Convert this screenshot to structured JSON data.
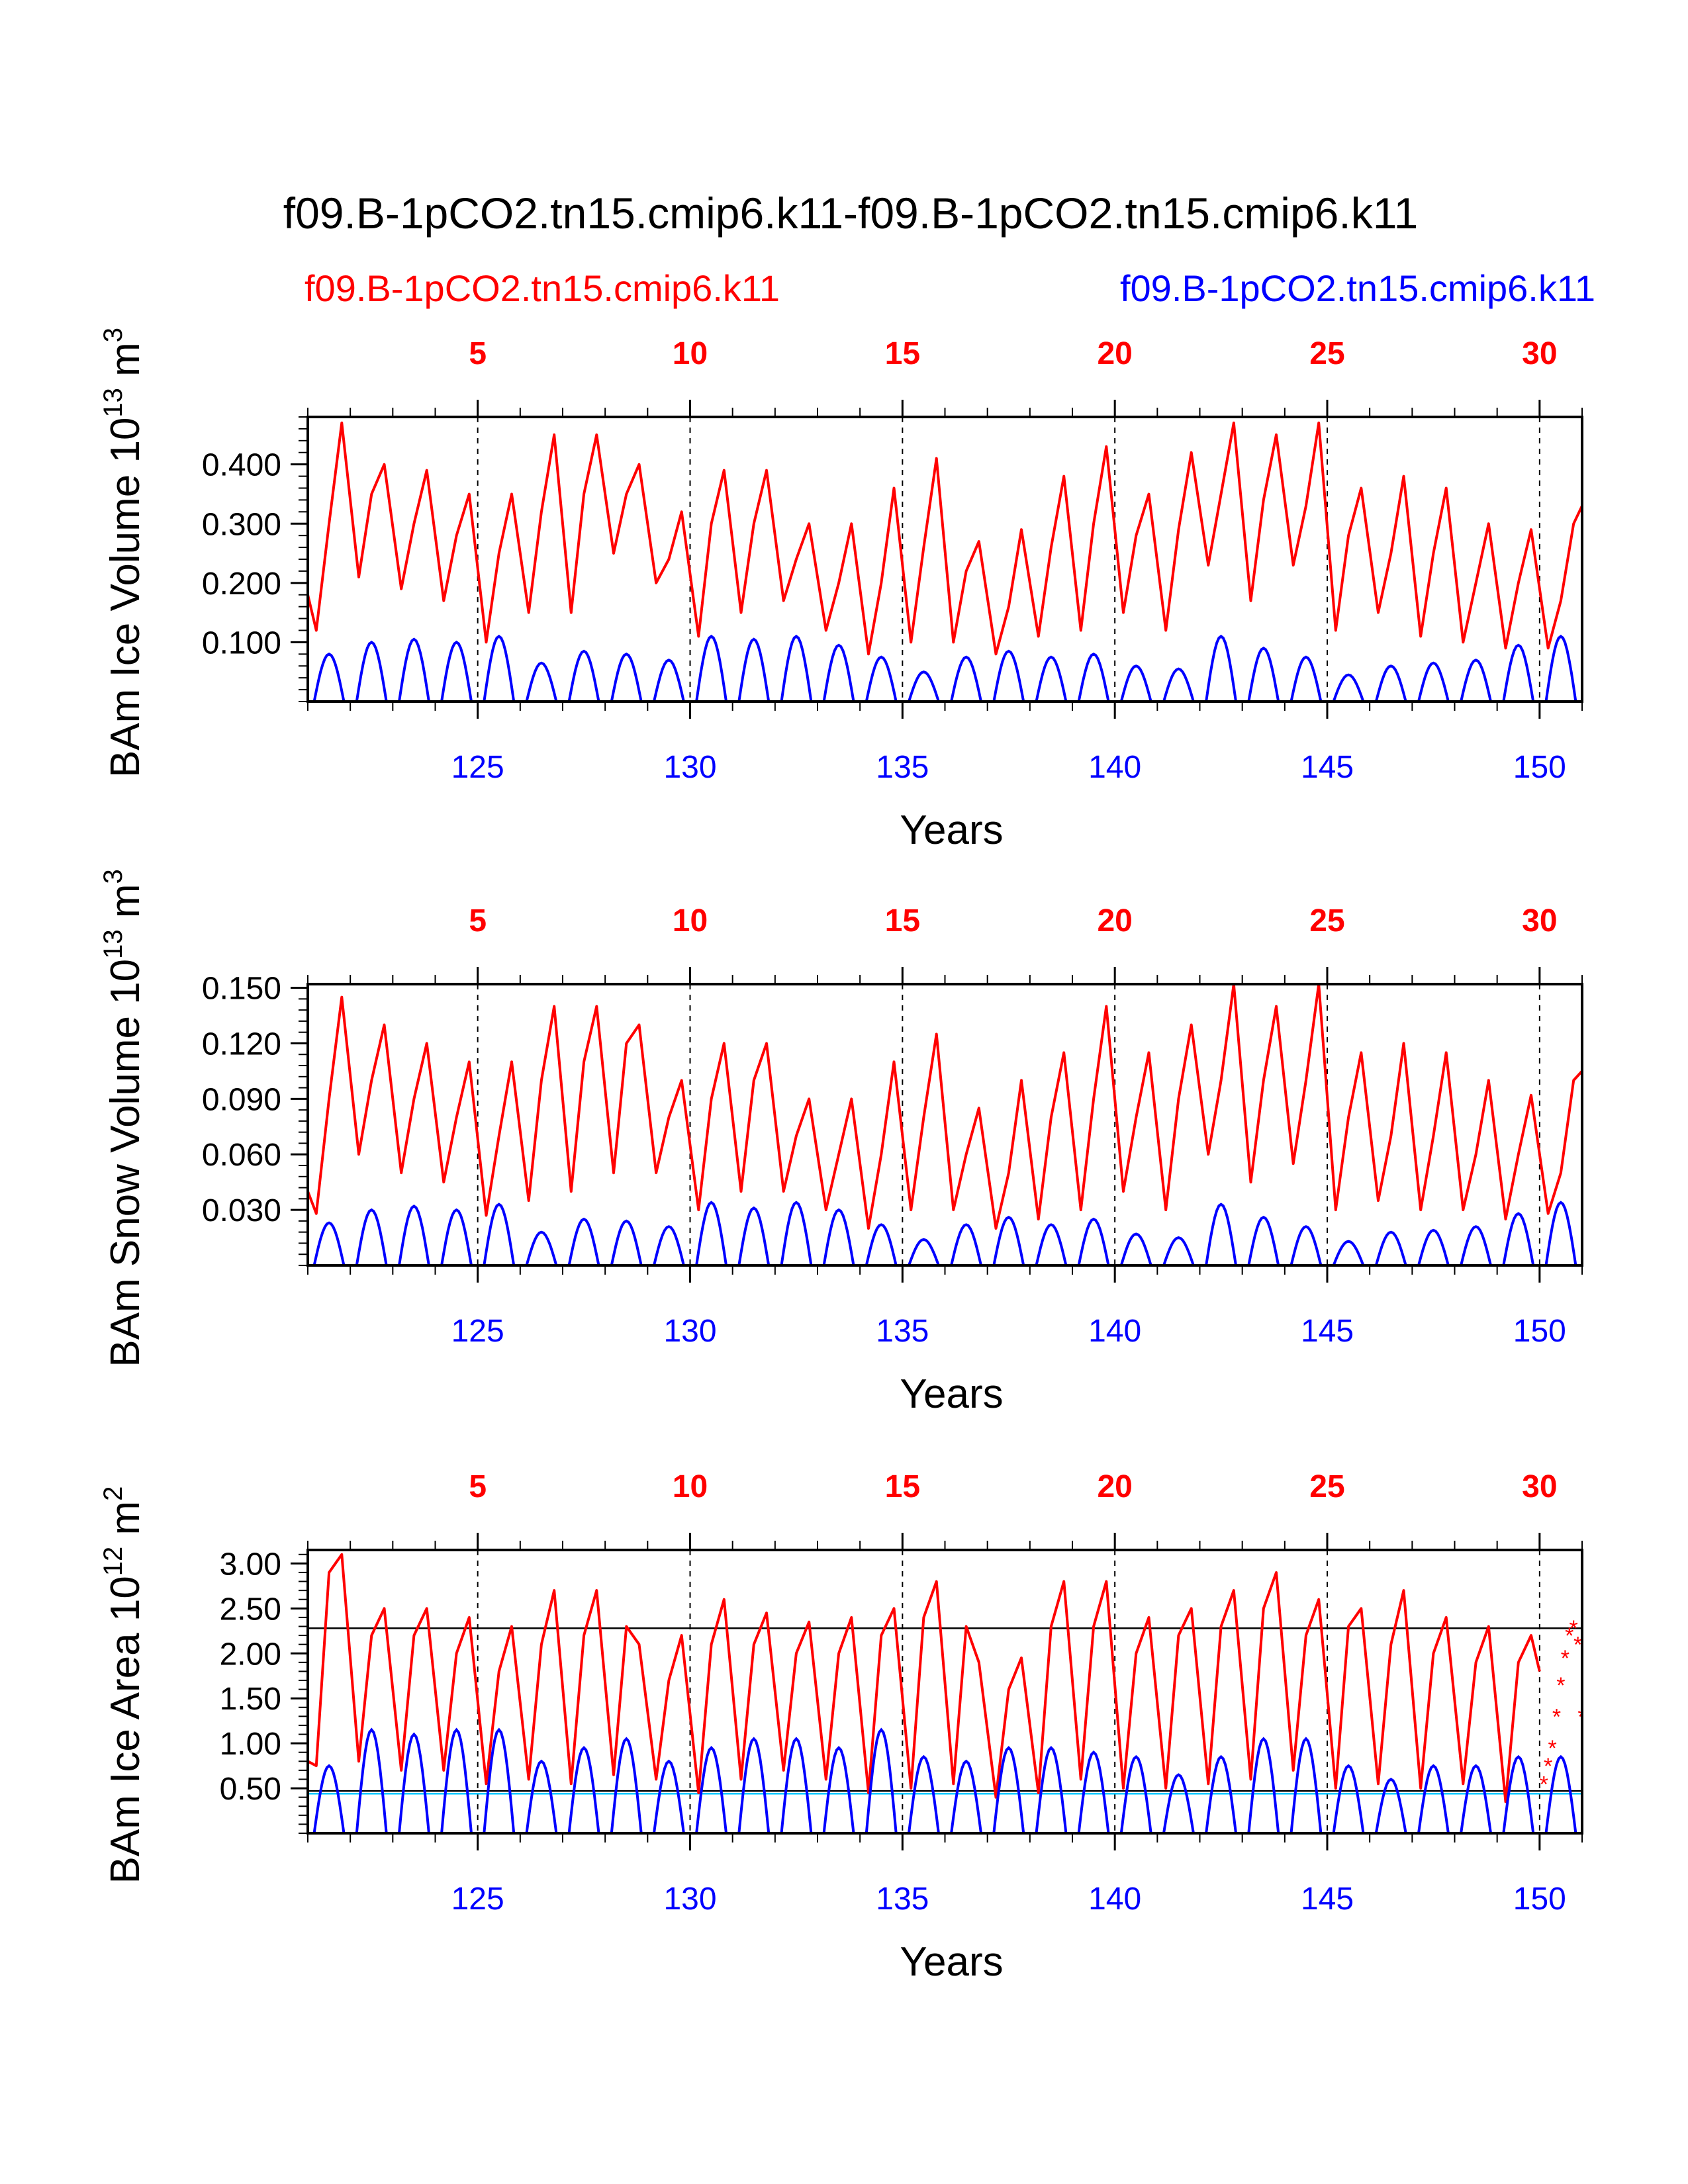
{
  "title": "f09.B-1pCO2.tn15.cmip6.k11-f09.B-1pCO2.tn15.cmip6.k11",
  "legend": {
    "left_label": "f09.B-1pCO2.tn15.cmip6.k11",
    "right_label": "f09.B-1pCO2.tn15.cmip6.k11",
    "left_color": "#ff0000",
    "right_color": "#0000ff"
  },
  "colors": {
    "red": "#ff0000",
    "blue": "#0000ff",
    "reference_cyan": "#00c8ff",
    "axis": "#000000"
  },
  "chart_data": [
    {
      "type": "line",
      "id": "ice-volume",
      "ylabel": "BAm Ice Volume",
      "yunit_base": "10",
      "yunit_exp": "13",
      "yunit_tail": "m",
      "yunit_tail_exp": "3",
      "xlabel": "Years",
      "xlim": [
        121,
        151
      ],
      "ylim": [
        0,
        0.48
      ],
      "yticks": [
        0.1,
        0.2,
        0.3,
        0.4
      ],
      "ytick_labels": [
        "0.100",
        "0.200",
        "0.300",
        "0.400"
      ],
      "ytick_minor_step": 0.02,
      "bottom_xticks": [
        125,
        130,
        135,
        140,
        145,
        150
      ],
      "bottom_xtick_labels": [
        "125",
        "130",
        "135",
        "140",
        "145",
        "150"
      ],
      "top_xticks": [
        5,
        10,
        15,
        20,
        25,
        30
      ],
      "top_xtick_labels": [
        "5",
        "10",
        "15",
        "20",
        "25",
        "30"
      ],
      "dashed_verticals": [
        125,
        130,
        135,
        140,
        145,
        150
      ],
      "series": [
        {
          "name": "f09.B-1pCO2.tn15.cmip6.k11 (red, top axis)",
          "color": "#ff0000",
          "x": [
            121.0,
            121.2,
            121.5,
            121.8,
            122.2,
            122.5,
            122.8,
            123.2,
            123.5,
            123.8,
            124.2,
            124.5,
            124.8,
            125.2,
            125.5,
            125.8,
            126.2,
            126.5,
            126.8,
            127.2,
            127.5,
            127.8,
            128.2,
            128.5,
            128.8,
            129.2,
            129.5,
            129.8,
            130.2,
            130.5,
            130.8,
            131.2,
            131.5,
            131.8,
            132.2,
            132.5,
            132.8,
            133.2,
            133.5,
            133.8,
            134.2,
            134.5,
            134.8,
            135.2,
            135.5,
            135.8,
            136.2,
            136.5,
            136.8,
            137.2,
            137.5,
            137.8,
            138.2,
            138.5,
            138.8,
            139.2,
            139.5,
            139.8,
            140.2,
            140.5,
            140.8,
            141.2,
            141.5,
            141.8,
            142.2,
            142.5,
            142.8,
            143.2,
            143.5,
            143.8,
            144.2,
            144.5,
            144.8,
            145.2,
            145.5,
            145.8,
            146.2,
            146.5,
            146.8,
            147.2,
            147.5,
            147.8,
            148.2,
            148.5,
            148.8,
            149.2,
            149.5,
            149.8,
            150.2,
            150.5,
            150.8,
            151.0
          ],
          "y": [
            0.18,
            0.12,
            0.3,
            0.47,
            0.21,
            0.35,
            0.4,
            0.19,
            0.3,
            0.39,
            0.17,
            0.28,
            0.35,
            0.1,
            0.25,
            0.35,
            0.15,
            0.32,
            0.45,
            0.15,
            0.35,
            0.45,
            0.25,
            0.35,
            0.4,
            0.2,
            0.24,
            0.32,
            0.11,
            0.3,
            0.39,
            0.15,
            0.3,
            0.39,
            0.17,
            0.24,
            0.3,
            0.12,
            0.2,
            0.3,
            0.08,
            0.2,
            0.36,
            0.1,
            0.26,
            0.41,
            0.1,
            0.22,
            0.27,
            0.08,
            0.16,
            0.29,
            0.11,
            0.26,
            0.38,
            0.12,
            0.3,
            0.43,
            0.15,
            0.28,
            0.35,
            0.12,
            0.29,
            0.42,
            0.23,
            0.35,
            0.47,
            0.17,
            0.34,
            0.45,
            0.23,
            0.33,
            0.47,
            0.12,
            0.28,
            0.36,
            0.15,
            0.25,
            0.38,
            0.11,
            0.25,
            0.36,
            0.1,
            0.2,
            0.3,
            0.09,
            0.2,
            0.29,
            0.09,
            0.17,
            0.3,
            0.33
          ]
        },
        {
          "name": "f09.B-1pCO2.tn15.cmip6.k11 (blue, bottom axis)",
          "color": "#0000ff",
          "peaks": [
            0.08,
            0.1,
            0.105,
            0.1,
            0.11,
            0.065,
            0.085,
            0.08,
            0.07,
            0.11,
            0.105,
            0.11,
            0.095,
            0.075,
            0.05,
            0.075,
            0.085,
            0.075,
            0.08,
            0.06,
            0.055,
            0.11,
            0.09,
            0.075,
            0.045,
            0.06,
            0.065,
            0.07,
            0.095,
            0.11
          ]
        }
      ],
      "reference_lines": []
    },
    {
      "type": "line",
      "id": "snow-volume",
      "ylabel": "BAm Snow Volume",
      "yunit_base": "10",
      "yunit_exp": "13",
      "yunit_tail": "m",
      "yunit_tail_exp": "3",
      "xlabel": "Years",
      "xlim": [
        121,
        151
      ],
      "ylim": [
        0,
        0.152
      ],
      "yticks": [
        0.03,
        0.06,
        0.09,
        0.12,
        0.15
      ],
      "ytick_labels": [
        "0.030",
        "0.060",
        "0.090",
        "0.120",
        "0.150"
      ],
      "ytick_minor_step": 0.006,
      "bottom_xticks": [
        125,
        130,
        135,
        140,
        145,
        150
      ],
      "bottom_xtick_labels": [
        "125",
        "130",
        "135",
        "140",
        "145",
        "150"
      ],
      "top_xticks": [
        5,
        10,
        15,
        20,
        25,
        30
      ],
      "top_xtick_labels": [
        "5",
        "10",
        "15",
        "20",
        "25",
        "30"
      ],
      "dashed_verticals": [
        125,
        130,
        135,
        140,
        145,
        150
      ],
      "series": [
        {
          "name": "f09.B-1pCO2.tn15.cmip6.k11 (red, top axis)",
          "color": "#ff0000",
          "x": [
            121.0,
            121.2,
            121.5,
            121.8,
            122.2,
            122.5,
            122.8,
            123.2,
            123.5,
            123.8,
            124.2,
            124.5,
            124.8,
            125.2,
            125.5,
            125.8,
            126.2,
            126.5,
            126.8,
            127.2,
            127.5,
            127.8,
            128.2,
            128.5,
            128.8,
            129.2,
            129.5,
            129.8,
            130.2,
            130.5,
            130.8,
            131.2,
            131.5,
            131.8,
            132.2,
            132.5,
            132.8,
            133.2,
            133.5,
            133.8,
            134.2,
            134.5,
            134.8,
            135.2,
            135.5,
            135.8,
            136.2,
            136.5,
            136.8,
            137.2,
            137.5,
            137.8,
            138.2,
            138.5,
            138.8,
            139.2,
            139.5,
            139.8,
            140.2,
            140.5,
            140.8,
            141.2,
            141.5,
            141.8,
            142.2,
            142.5,
            142.8,
            143.2,
            143.5,
            143.8,
            144.2,
            144.5,
            144.8,
            145.2,
            145.5,
            145.8,
            146.2,
            146.5,
            146.8,
            147.2,
            147.5,
            147.8,
            148.2,
            148.5,
            148.8,
            149.2,
            149.5,
            149.8,
            150.2,
            150.5,
            150.8,
            151.0
          ],
          "y": [
            0.04,
            0.028,
            0.09,
            0.145,
            0.06,
            0.1,
            0.13,
            0.05,
            0.09,
            0.12,
            0.045,
            0.08,
            0.11,
            0.027,
            0.07,
            0.11,
            0.035,
            0.1,
            0.14,
            0.04,
            0.11,
            0.14,
            0.05,
            0.12,
            0.13,
            0.05,
            0.08,
            0.1,
            0.03,
            0.09,
            0.12,
            0.04,
            0.1,
            0.12,
            0.04,
            0.07,
            0.09,
            0.03,
            0.06,
            0.09,
            0.02,
            0.06,
            0.11,
            0.03,
            0.08,
            0.125,
            0.03,
            0.06,
            0.085,
            0.02,
            0.05,
            0.1,
            0.025,
            0.08,
            0.115,
            0.03,
            0.09,
            0.14,
            0.04,
            0.08,
            0.115,
            0.03,
            0.09,
            0.13,
            0.06,
            0.1,
            0.152,
            0.045,
            0.1,
            0.14,
            0.055,
            0.1,
            0.152,
            0.03,
            0.08,
            0.115,
            0.035,
            0.07,
            0.12,
            0.03,
            0.07,
            0.115,
            0.03,
            0.06,
            0.1,
            0.025,
            0.06,
            0.092,
            0.028,
            0.05,
            0.1,
            0.105
          ]
        },
        {
          "name": "f09.B-1pCO2.tn15.cmip6.k11 (blue, bottom axis)",
          "color": "#0000ff",
          "peaks": [
            0.023,
            0.03,
            0.032,
            0.03,
            0.033,
            0.018,
            0.025,
            0.024,
            0.021,
            0.034,
            0.031,
            0.034,
            0.03,
            0.022,
            0.014,
            0.022,
            0.026,
            0.022,
            0.025,
            0.017,
            0.015,
            0.033,
            0.026,
            0.021,
            0.013,
            0.018,
            0.019,
            0.021,
            0.028,
            0.034
          ]
        }
      ],
      "reference_lines": []
    },
    {
      "type": "line",
      "id": "ice-area",
      "ylabel": "BAm Ice Area",
      "yunit_base": "10",
      "yunit_exp": "12",
      "yunit_tail": "m",
      "yunit_tail_exp": "2",
      "xlabel": "Years",
      "xlim": [
        121,
        151
      ],
      "ylim": [
        0,
        3.15
      ],
      "yticks": [
        0.5,
        1.0,
        1.5,
        2.0,
        2.5,
        3.0
      ],
      "ytick_labels": [
        "0.50",
        "1.00",
        "1.50",
        "2.00",
        "2.50",
        "3.00"
      ],
      "ytick_minor_step": 0.1,
      "bottom_xticks": [
        125,
        130,
        135,
        140,
        145,
        150
      ],
      "bottom_xtick_labels": [
        "125",
        "130",
        "135",
        "140",
        "145",
        "150"
      ],
      "top_xticks": [
        5,
        10,
        15,
        20,
        25,
        30
      ],
      "top_xtick_labels": [
        "5",
        "10",
        "15",
        "20",
        "25",
        "30"
      ],
      "dashed_verticals": [
        125,
        130,
        135,
        140,
        145,
        150
      ],
      "series": [
        {
          "name": "f09.B-1pCO2.tn15.cmip6.k11 (red, top axis)",
          "color": "#ff0000",
          "x": [
            121.0,
            121.2,
            121.5,
            121.8,
            122.2,
            122.5,
            122.8,
            123.2,
            123.5,
            123.8,
            124.2,
            124.5,
            124.8,
            125.2,
            125.5,
            125.8,
            126.2,
            126.5,
            126.8,
            127.2,
            127.5,
            127.8,
            128.2,
            128.5,
            128.8,
            129.2,
            129.5,
            129.8,
            130.2,
            130.5,
            130.8,
            131.2,
            131.5,
            131.8,
            132.2,
            132.5,
            132.8,
            133.2,
            133.5,
            133.8,
            134.2,
            134.5,
            134.8,
            135.2,
            135.5,
            135.8,
            136.2,
            136.5,
            136.8,
            137.2,
            137.5,
            137.8,
            138.2,
            138.5,
            138.8,
            139.2,
            139.5,
            139.8,
            140.2,
            140.5,
            140.8,
            141.2,
            141.5,
            141.8,
            142.2,
            142.5,
            142.8,
            143.2,
            143.5,
            143.8,
            144.2,
            144.5,
            144.8,
            145.2,
            145.5,
            145.8,
            146.2,
            146.5,
            146.8,
            147.2,
            147.5,
            147.8,
            148.2,
            148.5,
            148.8,
            149.2,
            149.5,
            149.8,
            150.0
          ],
          "y": [
            0.8,
            0.75,
            2.9,
            3.1,
            0.8,
            2.2,
            2.5,
            0.7,
            2.2,
            2.5,
            0.7,
            2.0,
            2.4,
            0.55,
            1.8,
            2.3,
            0.6,
            2.1,
            2.7,
            0.55,
            2.2,
            2.7,
            0.65,
            2.3,
            2.1,
            0.6,
            1.7,
            2.2,
            0.45,
            2.1,
            2.6,
            0.6,
            2.1,
            2.45,
            0.7,
            2.0,
            2.35,
            0.6,
            2.0,
            2.4,
            0.45,
            2.2,
            2.5,
            0.5,
            2.4,
            2.8,
            0.55,
            2.3,
            1.9,
            0.4,
            1.6,
            1.95,
            0.45,
            2.3,
            2.8,
            0.6,
            2.3,
            2.8,
            0.5,
            2.0,
            2.4,
            0.5,
            2.2,
            2.5,
            0.55,
            2.3,
            2.7,
            0.6,
            2.5,
            2.9,
            0.7,
            2.2,
            2.6,
            0.5,
            2.3,
            2.5,
            0.55,
            2.1,
            2.7,
            0.5,
            2.0,
            2.4,
            0.55,
            1.9,
            2.3,
            0.35,
            1.9,
            2.2,
            1.8
          ]
        },
        {
          "name": "f09.B-1pCO2.tn15.cmip6.k11 (blue, bottom axis)",
          "color": "#0000ff",
          "peaks": [
            0.75,
            1.15,
            1.1,
            1.15,
            1.15,
            0.8,
            0.95,
            1.05,
            0.8,
            0.95,
            1.05,
            1.05,
            0.95,
            1.15,
            0.85,
            0.8,
            0.95,
            0.95,
            0.9,
            0.85,
            0.65,
            0.85,
            1.05,
            1.05,
            0.75,
            0.6,
            0.75,
            0.75,
            0.85,
            0.85
          ]
        },
        {
          "name": "markers (red asterisks)",
          "color": "#ff0000",
          "x": [
            150.1,
            150.2,
            150.3,
            150.4,
            150.5,
            150.6,
            150.7,
            150.8,
            150.9,
            151.0
          ],
          "y": [
            0.55,
            0.75,
            0.95,
            1.3,
            1.65,
            1.95,
            2.2,
            2.28,
            2.1,
            1.3
          ]
        }
      ],
      "reference_lines": [
        {
          "y": 2.28,
          "color": "#000000"
        },
        {
          "y": 0.44,
          "color": "#00c8ff"
        },
        {
          "y": 0.47,
          "color": "#000000"
        }
      ]
    }
  ]
}
